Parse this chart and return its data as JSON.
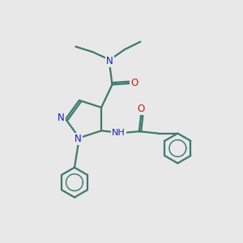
{
  "bg_color": "#e8e8e8",
  "bond_color": "#3d7a6a",
  "N_color": "#1a1acc",
  "O_color": "#cc1a00",
  "lw": 1.6,
  "figsize": [
    3.0,
    3.0
  ],
  "dpi": 100,
  "xlim": [
    0,
    10
  ],
  "ylim": [
    0,
    10
  ]
}
